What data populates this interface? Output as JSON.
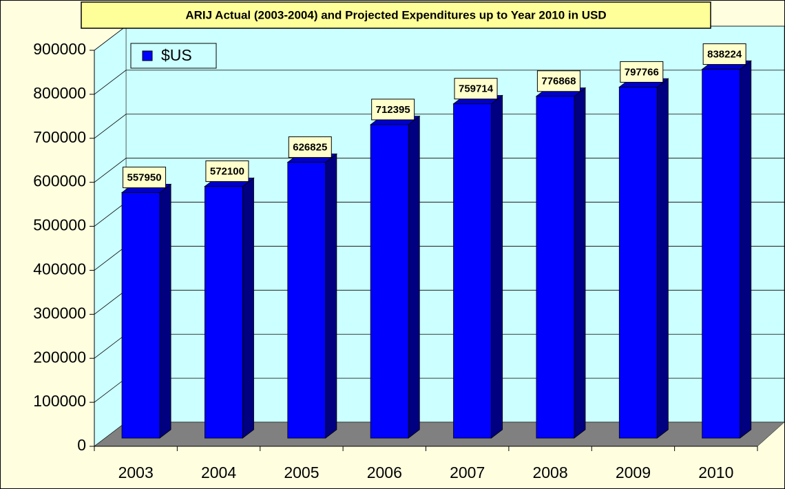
{
  "chart_data": {
    "type": "bar3d",
    "title": "ARIJ Actual (2003-2004) and Projected Expenditures up to Year 2010 in USD",
    "categories": [
      "2003",
      "2004",
      "2005",
      "2006",
      "2007",
      "2008",
      "2009",
      "2010"
    ],
    "series": [
      {
        "name": "$US",
        "color": "#0000ff",
        "values": [
          557950,
          572100,
          626825,
          712395,
          759714,
          776868,
          797766,
          838224
        ]
      }
    ],
    "ylim": [
      0,
      900000
    ],
    "yticks": [
      0,
      100000,
      200000,
      300000,
      400000,
      500000,
      600000,
      700000,
      800000,
      900000
    ],
    "grid": true,
    "legend": "top-left"
  }
}
